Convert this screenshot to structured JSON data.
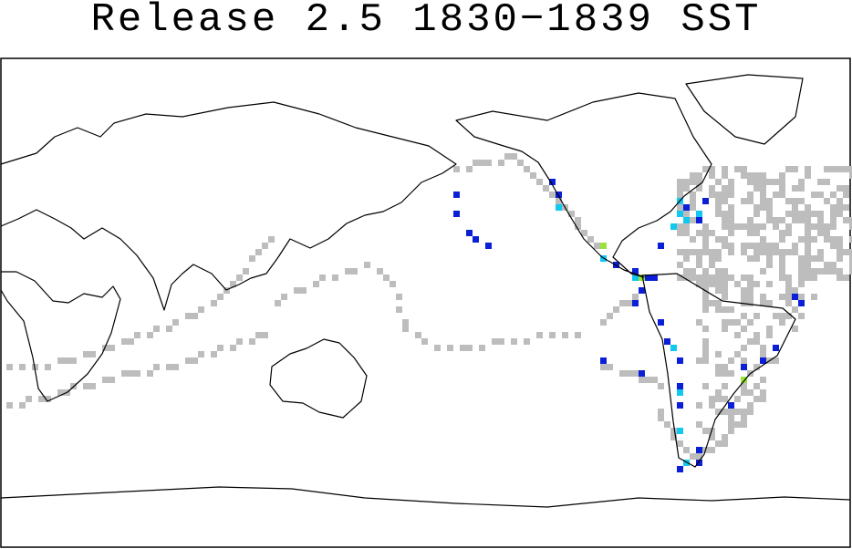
{
  "title": "Release 2.5 1830−1839 SST"
}
